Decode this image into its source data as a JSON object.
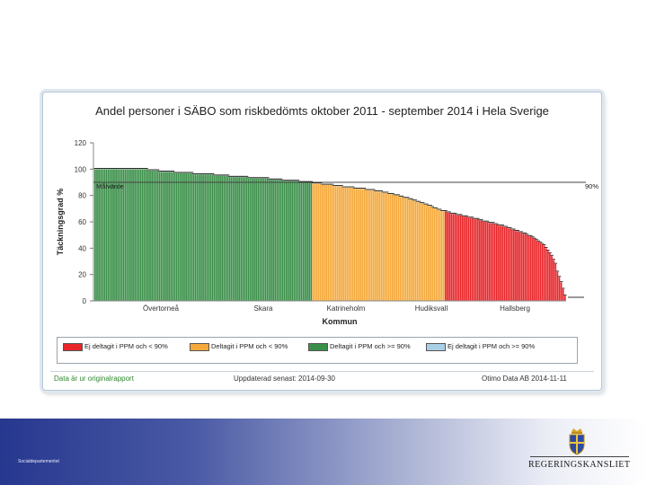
{
  "header": {
    "dept_label": "Socialdepartementet"
  },
  "logo": {
    "text": "REGERINGSKANSLIET"
  },
  "chart_panel": {
    "footer_link": "Data är ur originalrapport",
    "updated": "Uppdaterad senast: 2014-09-30",
    "credit": "Otimo Data AB 2014-11-11"
  },
  "chart_data": {
    "type": "bar",
    "title": "Andel personer i SÄBO som riskbedömts  oktober 2011 - september 2014 i Hela Sverige",
    "xlabel": "Kommun",
    "ylabel": "Täckningsgrad %",
    "ylim": [
      0,
      120
    ],
    "yticks": [
      0,
      20,
      40,
      60,
      80,
      100,
      120
    ],
    "target": {
      "value": 90,
      "label": "Målvärde",
      "right_label": "90%"
    },
    "category_labels": [
      "Övertorneå",
      "Skara",
      "Katrineholm",
      "Hudiksvall",
      "Hallsberg"
    ],
    "legend": [
      {
        "label": "Ej deltagit i PPM och < 90%",
        "color": "#e8262a"
      },
      {
        "label": "Deltagit i PPM och < 90%",
        "color": "#f5a93b"
      },
      {
        "label": "Deltagit i PPM och >= 90%",
        "color": "#3a8f49"
      },
      {
        "label": "Ej deltagit i PPM och >= 90%",
        "color": "#a9cfe6"
      }
    ],
    "grid": false,
    "legend_position": "bottom",
    "series": [
      {
        "color_group": "green",
        "values": [
          100,
          100,
          100,
          100,
          100,
          100,
          100,
          100,
          100,
          100,
          100,
          100,
          100,
          100,
          100,
          100,
          100,
          100,
          100,
          100,
          100,
          100,
          100,
          100,
          100,
          100,
          100,
          100,
          99,
          99,
          99,
          99,
          99,
          99,
          98,
          98,
          98,
          98,
          98,
          98,
          98,
          98,
          97,
          97,
          97,
          97,
          97,
          97,
          97,
          97,
          97,
          97,
          96,
          96,
          96,
          96,
          96,
          96,
          96,
          96,
          96,
          96,
          96,
          95,
          95,
          95,
          95,
          95,
          95,
          95,
          95,
          94,
          94,
          94,
          94,
          94,
          94,
          94,
          94,
          94,
          94,
          93,
          93,
          93,
          93,
          93,
          93,
          93,
          93,
          93,
          93,
          93,
          92,
          92,
          92,
          92,
          92,
          92,
          92,
          91,
          91,
          91,
          91,
          91,
          91,
          91,
          91,
          91,
          90,
          90,
          90,
          90,
          90,
          90,
          90
        ]
      },
      {
        "color_group": "orange",
        "values": [
          89,
          89,
          89,
          89,
          89,
          88,
          88,
          88,
          88,
          88,
          88,
          87,
          87,
          87,
          87,
          87,
          86,
          86,
          86,
          86,
          86,
          86,
          85,
          85,
          85,
          85,
          85,
          85,
          84,
          84,
          84,
          84,
          84,
          83,
          83,
          83,
          83,
          82,
          82,
          82,
          81,
          81,
          81,
          80,
          80,
          80,
          79,
          79,
          78,
          78,
          78,
          77,
          77,
          76,
          76,
          75,
          75,
          74,
          74,
          73,
          73,
          72,
          72,
          71,
          70,
          70,
          69,
          69,
          68,
          68
        ]
      },
      {
        "color_group": "red",
        "values": [
          68,
          67,
          67,
          66,
          66,
          66,
          65,
          65,
          65,
          64,
          64,
          64,
          63,
          63,
          63,
          62,
          62,
          62,
          61,
          61,
          60,
          60,
          60,
          59,
          59,
          59,
          58,
          58,
          57,
          57,
          57,
          56,
          56,
          55,
          55,
          54,
          54,
          53,
          53,
          52,
          52,
          51,
          51,
          50,
          49,
          49,
          48,
          47,
          46,
          45,
          44,
          43,
          42,
          40,
          38,
          36,
          34,
          31,
          28,
          22,
          18,
          14,
          9,
          4
        ]
      }
    ]
  }
}
